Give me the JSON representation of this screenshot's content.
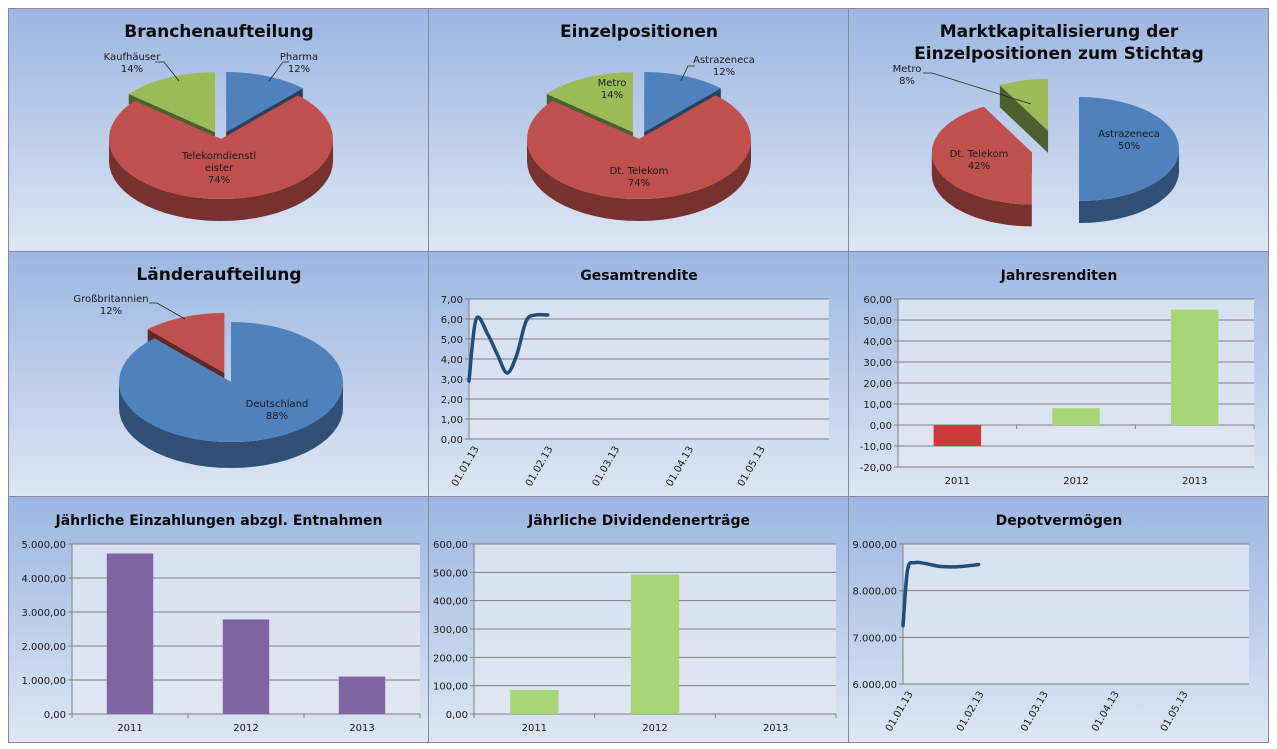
{
  "colors": {
    "blue": "#4f81bd",
    "red": "#c0504d",
    "green": "#9bbb59",
    "purple": "#8064a2",
    "bar_green": "#a6d677",
    "bar_red": "#cd3a3a",
    "negative_tick": "#c00000",
    "line": "#1f4e79"
  },
  "chart_data": [
    {
      "id": "branchenaufteilung",
      "type": "pie",
      "title": "Branchenaufteilung",
      "slices": [
        {
          "label": "Pharma",
          "percent_label": "12%",
          "value": 12,
          "color": "blue"
        },
        {
          "label": "Telekomdienstleister",
          "label_lines": [
            "Telekomdienstl",
            "eister"
          ],
          "percent_label": "74%",
          "value": 74,
          "color": "red"
        },
        {
          "label": "Kaufhäuser",
          "percent_label": "14%",
          "value": 14,
          "color": "green"
        }
      ]
    },
    {
      "id": "einzelpositionen",
      "type": "pie",
      "title": "Einzelpositionen",
      "slices": [
        {
          "label": "Astrazeneca",
          "percent_label": "12%",
          "value": 12,
          "color": "blue"
        },
        {
          "label": "Dt. Telekom",
          "percent_label": "74%",
          "value": 74,
          "color": "red"
        },
        {
          "label": "Metro",
          "percent_label": "14%",
          "value": 14,
          "color": "green"
        }
      ]
    },
    {
      "id": "marktkapitalisierung",
      "type": "pie",
      "title_lines": [
        "Marktkapitalisierung der",
        "Einzelpositionen zum Stichtag"
      ],
      "slices": [
        {
          "label": "Astrazeneca",
          "percent_label": "50%",
          "value": 50,
          "color": "blue"
        },
        {
          "label": "Dt. Telekom",
          "percent_label": "42%",
          "value": 42,
          "color": "red"
        },
        {
          "label": "Metro",
          "percent_label": "8%",
          "value": 8,
          "color": "green"
        }
      ]
    },
    {
      "id": "laenderaufteilung",
      "type": "pie",
      "title": "Länderaufteilung",
      "slices": [
        {
          "label": "Deutschland",
          "percent_label": "88%",
          "value": 88,
          "color": "blue"
        },
        {
          "label": "Großbritannien",
          "percent_label": "12%",
          "value": 12,
          "color": "red"
        }
      ]
    },
    {
      "id": "gesamtrendite",
      "type": "line",
      "title": "Gesamtrendite",
      "ylim": [
        0,
        7
      ],
      "yticks": [
        "0,00",
        "1,00",
        "2,00",
        "3,00",
        "4,00",
        "5,00",
        "6,00",
        "7,00"
      ],
      "xticks": [
        "01.01.13",
        "01.02.13",
        "01.03.13",
        "01.04.13",
        "01.05.13"
      ],
      "x_days": [
        0,
        3,
        8,
        12,
        16,
        20,
        24,
        28,
        33
      ],
      "y": [
        2.9,
        6.0,
        5.2,
        4.2,
        3.3,
        4.2,
        5.9,
        6.2,
        6.2
      ],
      "grid": true
    },
    {
      "id": "jahresrenditen",
      "type": "bar",
      "title": "Jahresrenditen",
      "categories": [
        "2011",
        "2012",
        "2013"
      ],
      "values": [
        -10,
        8,
        55
      ],
      "ylim": [
        -20,
        60
      ],
      "yticks": [
        "-20,00",
        "-10,00",
        "0,00",
        "10,00",
        "20,00",
        "30,00",
        "40,00",
        "50,00",
        "60,00"
      ],
      "grid": true
    },
    {
      "id": "einzahlungen",
      "type": "bar",
      "title": "Jährliche Einzahlungen abzgl. Entnahmen",
      "categories": [
        "2011",
        "2012",
        "2013"
      ],
      "values": [
        4720,
        2780,
        1100
      ],
      "ylim": [
        0,
        5000
      ],
      "yticks": [
        "0,00",
        "1.000,00",
        "2.000,00",
        "3.000,00",
        "4.000,00",
        "5.000,00"
      ],
      "grid": true
    },
    {
      "id": "dividendenertraege",
      "type": "bar",
      "title": "Jährliche Dividendenerträge",
      "categories": [
        "2011",
        "2012",
        "2013"
      ],
      "values": [
        85,
        492,
        0
      ],
      "ylim": [
        0,
        600
      ],
      "yticks": [
        "0,00",
        "100,00",
        "200,00",
        "300,00",
        "400,00",
        "500,00",
        "600,00"
      ],
      "grid": true
    },
    {
      "id": "depotvermoegen",
      "type": "line",
      "title": "Depotvermögen",
      "ylim": [
        6000,
        9000
      ],
      "yticks": [
        "6.000,00",
        "7.000,00",
        "8.000,00",
        "9.000,00"
      ],
      "xticks": [
        "01.01.13",
        "01.02.13",
        "01.03.13",
        "01.04.13",
        "01.05.13"
      ],
      "x_days": [
        0,
        2,
        5,
        10,
        16,
        22,
        28,
        33
      ],
      "y": [
        7250,
        8450,
        8600,
        8580,
        8520,
        8510,
        8530,
        8560
      ],
      "grid": true
    }
  ]
}
